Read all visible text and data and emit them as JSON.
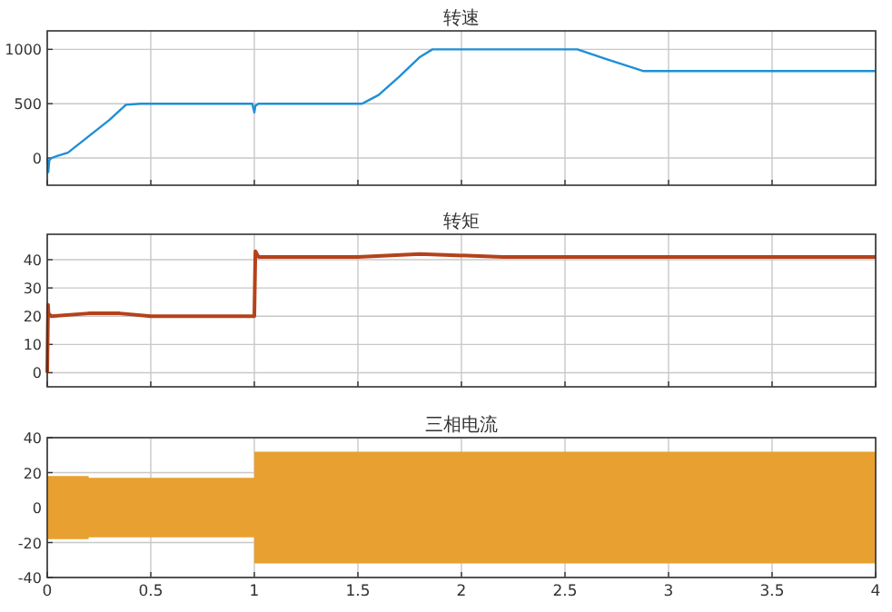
{
  "chart_data": [
    {
      "type": "line",
      "title": "转速",
      "x": [
        0,
        0.005,
        0.01,
        0.02,
        0.05,
        0.1,
        0.2,
        0.3,
        0.38,
        0.45,
        0.7,
        0.99,
        1.0,
        1.005,
        1.02,
        1.3,
        1.52,
        1.55,
        1.6,
        1.7,
        1.8,
        1.86,
        2.0,
        2.3,
        2.56,
        2.7,
        2.88,
        3.2,
        3.6,
        4.0
      ],
      "values": [
        0,
        -130,
        -20,
        0,
        20,
        50,
        200,
        350,
        490,
        500,
        500,
        500,
        420,
        480,
        500,
        500,
        500,
        530,
        580,
        750,
        930,
        1000,
        1000,
        1000,
        1000,
        910,
        800,
        800,
        800,
        800
      ],
      "color": "#1f8fd6",
      "xlim": [
        0,
        4
      ],
      "xticks": [
        0,
        0.5,
        1,
        1.5,
        2,
        2.5,
        3,
        3.5,
        4
      ],
      "ylim": [
        -250,
        1170
      ],
      "yticks": [
        0,
        500,
        1000
      ],
      "grid": true,
      "legend": false,
      "tick_labels": "y"
    },
    {
      "type": "line",
      "title": "转矩",
      "x": [
        0,
        0.004,
        0.006,
        0.02,
        0.2,
        0.35,
        0.5,
        0.99,
        1.0,
        1.005,
        1.02,
        1.5,
        1.8,
        2.2,
        2.6,
        3.0,
        3.5,
        4.0
      ],
      "values": [
        0,
        24,
        21,
        20,
        21,
        21,
        20,
        20,
        20,
        43,
        41,
        41,
        42,
        41,
        41,
        41,
        41,
        41
      ],
      "color": "#b5421a",
      "xlim": [
        0,
        4
      ],
      "xticks": [
        0,
        0.5,
        1,
        1.5,
        2,
        2.5,
        3,
        3.5,
        4
      ],
      "ylim": [
        -5,
        49
      ],
      "yticks": [
        0,
        10,
        20,
        30,
        40
      ],
      "grid": true,
      "legend": false,
      "tick_labels": "y"
    },
    {
      "type": "area",
      "title": "三相电流",
      "series": [
        {
          "color": "#e8a030",
          "x": [
            0,
            0.2,
            0.2,
            1.0,
            1.0,
            4.0
          ],
          "values": [
            18,
            18,
            17,
            17,
            32,
            32
          ]
        },
        {
          "color": "#e8a030",
          "x": [
            0,
            0.2,
            0.2,
            1.0,
            1.0,
            4.0
          ],
          "values": [
            -18,
            -18,
            -17,
            -17,
            -32,
            -32
          ]
        }
      ],
      "xlim": [
        0,
        4
      ],
      "xticks": [
        0,
        0.5,
        1,
        1.5,
        2,
        2.5,
        3,
        3.5,
        4
      ],
      "ylim": [
        -40,
        40
      ],
      "yticks": [
        -40,
        -20,
        0,
        20,
        40
      ],
      "grid": true,
      "legend": false
    }
  ]
}
